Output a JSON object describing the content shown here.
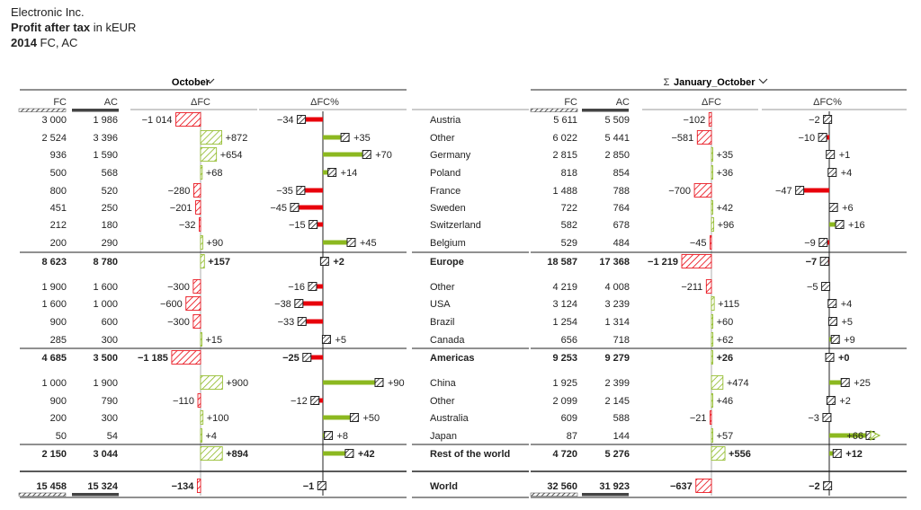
{
  "header": {
    "company": "Electronic Inc.",
    "measure_bold": "Profit after tax",
    "measure_rest": " in kEUR",
    "year": "2014",
    "scenario": " FC, AC"
  },
  "chart_data": {
    "type": "table",
    "period_left": "October",
    "period_right": "January_October",
    "sigma": "Σ",
    "col_fc": "FC",
    "col_ac": "AC",
    "col_dfc": "ΔFC",
    "col_dfcpct": "ΔFC%",
    "colors": {
      "positive": "#8cb820",
      "negative": "#e8000b",
      "total_bar": "#555555",
      "rule": "#222222"
    },
    "rows": [
      {
        "name": "Austria",
        "kind": "item",
        "m_fc": "3 000",
        "m_ac": "1 986",
        "m_dfc": -1014,
        "m_dfc_lbl": "−1 014",
        "m_pct": -34,
        "m_pct_lbl": "−34",
        "y_fc": "5 611",
        "y_ac": "5 509",
        "y_dfc": -102,
        "y_dfc_lbl": "−102",
        "y_pct": -2,
        "y_pct_lbl": "−2"
      },
      {
        "name": "Other",
        "kind": "item",
        "m_fc": "2 524",
        "m_ac": "3 396",
        "m_dfc": 872,
        "m_dfc_lbl": "+872",
        "m_pct": 35,
        "m_pct_lbl": "+35",
        "y_fc": "6 022",
        "y_ac": "5 441",
        "y_dfc": -581,
        "y_dfc_lbl": "−581",
        "y_pct": -10,
        "y_pct_lbl": "−10"
      },
      {
        "name": "Germany",
        "kind": "item",
        "m_fc": "936",
        "m_ac": "1 590",
        "m_dfc": 654,
        "m_dfc_lbl": "+654",
        "m_pct": 70,
        "m_pct_lbl": "+70",
        "y_fc": "2 815",
        "y_ac": "2 850",
        "y_dfc": 35,
        "y_dfc_lbl": "+35",
        "y_pct": 1,
        "y_pct_lbl": "+1"
      },
      {
        "name": "Poland",
        "kind": "item",
        "m_fc": "500",
        "m_ac": "568",
        "m_dfc": 68,
        "m_dfc_lbl": "+68",
        "m_pct": 14,
        "m_pct_lbl": "+14",
        "y_fc": "818",
        "y_ac": "854",
        "y_dfc": 36,
        "y_dfc_lbl": "+36",
        "y_pct": 4,
        "y_pct_lbl": "+4"
      },
      {
        "name": "France",
        "kind": "item",
        "m_fc": "800",
        "m_ac": "520",
        "m_dfc": -280,
        "m_dfc_lbl": "−280",
        "m_pct": -35,
        "m_pct_lbl": "−35",
        "y_fc": "1 488",
        "y_ac": "788",
        "y_dfc": -700,
        "y_dfc_lbl": "−700",
        "y_pct": -47,
        "y_pct_lbl": "−47"
      },
      {
        "name": "Sweden",
        "kind": "item",
        "m_fc": "451",
        "m_ac": "250",
        "m_dfc": -201,
        "m_dfc_lbl": "−201",
        "m_pct": -45,
        "m_pct_lbl": "−45",
        "y_fc": "722",
        "y_ac": "764",
        "y_dfc": 42,
        "y_dfc_lbl": "+42",
        "y_pct": 6,
        "y_pct_lbl": "+6"
      },
      {
        "name": "Switzerland",
        "kind": "item",
        "m_fc": "212",
        "m_ac": "180",
        "m_dfc": -32,
        "m_dfc_lbl": "−32",
        "m_pct": -15,
        "m_pct_lbl": "−15",
        "y_fc": "582",
        "y_ac": "678",
        "y_dfc": 96,
        "y_dfc_lbl": "+96",
        "y_pct": 16,
        "y_pct_lbl": "+16"
      },
      {
        "name": "Belgium",
        "kind": "item",
        "m_fc": "200",
        "m_ac": "290",
        "m_dfc": 90,
        "m_dfc_lbl": "+90",
        "m_pct": 45,
        "m_pct_lbl": "+45",
        "y_fc": "529",
        "y_ac": "484",
        "y_dfc": -45,
        "y_dfc_lbl": "−45",
        "y_pct": -9,
        "y_pct_lbl": "−9"
      },
      {
        "name": "Europe",
        "kind": "subtotal",
        "m_fc": "8 623",
        "m_ac": "8 780",
        "m_dfc": 157,
        "m_dfc_lbl": "+157",
        "m_pct": 2,
        "m_pct_lbl": "+2",
        "y_fc": "18 587",
        "y_ac": "17 368",
        "y_dfc": -1219,
        "y_dfc_lbl": "−1 219",
        "y_pct": -7,
        "y_pct_lbl": "−7"
      },
      {
        "name": "Other",
        "kind": "item",
        "m_fc": "1 900",
        "m_ac": "1 600",
        "m_dfc": -300,
        "m_dfc_lbl": "−300",
        "m_pct": -16,
        "m_pct_lbl": "−16",
        "y_fc": "4 219",
        "y_ac": "4 008",
        "y_dfc": -211,
        "y_dfc_lbl": "−211",
        "y_pct": -5,
        "y_pct_lbl": "−5"
      },
      {
        "name": "USA",
        "kind": "item",
        "m_fc": "1 600",
        "m_ac": "1 000",
        "m_dfc": -600,
        "m_dfc_lbl": "−600",
        "m_pct": -38,
        "m_pct_lbl": "−38",
        "y_fc": "3 124",
        "y_ac": "3 239",
        "y_dfc": 115,
        "y_dfc_lbl": "+115",
        "y_pct": 4,
        "y_pct_lbl": "+4"
      },
      {
        "name": "Brazil",
        "kind": "item",
        "m_fc": "900",
        "m_ac": "600",
        "m_dfc": -300,
        "m_dfc_lbl": "−300",
        "m_pct": -33,
        "m_pct_lbl": "−33",
        "y_fc": "1 254",
        "y_ac": "1 314",
        "y_dfc": 60,
        "y_dfc_lbl": "+60",
        "y_pct": 5,
        "y_pct_lbl": "+5"
      },
      {
        "name": "Canada",
        "kind": "item",
        "m_fc": "285",
        "m_ac": "300",
        "m_dfc": 15,
        "m_dfc_lbl": "+15",
        "m_pct": 5,
        "m_pct_lbl": "+5",
        "y_fc": "656",
        "y_ac": "718",
        "y_dfc": 62,
        "y_dfc_lbl": "+62",
        "y_pct": 9,
        "y_pct_lbl": "+9"
      },
      {
        "name": "Americas",
        "kind": "subtotal",
        "m_fc": "4 685",
        "m_ac": "3 500",
        "m_dfc": -1185,
        "m_dfc_lbl": "−1 185",
        "m_pct": -25,
        "m_pct_lbl": "−25",
        "y_fc": "9 253",
        "y_ac": "9 279",
        "y_dfc": 26,
        "y_dfc_lbl": "+26",
        "y_pct": 0,
        "y_pct_lbl": "+0"
      },
      {
        "name": "China",
        "kind": "item",
        "m_fc": "1 000",
        "m_ac": "1 900",
        "m_dfc": 900,
        "m_dfc_lbl": "+900",
        "m_pct": 90,
        "m_pct_lbl": "+90",
        "y_fc": "1 925",
        "y_ac": "2 399",
        "y_dfc": 474,
        "y_dfc_lbl": "+474",
        "y_pct": 25,
        "y_pct_lbl": "+25"
      },
      {
        "name": "Other",
        "kind": "item",
        "m_fc": "900",
        "m_ac": "790",
        "m_dfc": -110,
        "m_dfc_lbl": "−110",
        "m_pct": -12,
        "m_pct_lbl": "−12",
        "y_fc": "2 099",
        "y_ac": "2 145",
        "y_dfc": 46,
        "y_dfc_lbl": "+46",
        "y_pct": 2,
        "y_pct_lbl": "+2"
      },
      {
        "name": "Australia",
        "kind": "item",
        "m_fc": "200",
        "m_ac": "300",
        "m_dfc": 100,
        "m_dfc_lbl": "+100",
        "m_pct": 50,
        "m_pct_lbl": "+50",
        "y_fc": "609",
        "y_ac": "588",
        "y_dfc": -21,
        "y_dfc_lbl": "−21",
        "y_pct": -3,
        "y_pct_lbl": "−3"
      },
      {
        "name": "Japan",
        "kind": "item",
        "m_fc": "50",
        "m_ac": "54",
        "m_dfc": 4,
        "m_dfc_lbl": "+4",
        "m_pct": 8,
        "m_pct_lbl": "+8",
        "y_fc": "87",
        "y_ac": "144",
        "y_dfc": 57,
        "y_dfc_lbl": "+57",
        "y_pct": 66,
        "y_pct_lbl": "+66"
      },
      {
        "name": "Rest of the world",
        "kind": "subtotal",
        "m_fc": "2 150",
        "m_ac": "3 044",
        "m_dfc": 894,
        "m_dfc_lbl": "+894",
        "m_pct": 42,
        "m_pct_lbl": "+42",
        "y_fc": "4 720",
        "y_ac": "5 276",
        "y_dfc": 556,
        "y_dfc_lbl": "+556",
        "y_pct": 12,
        "y_pct_lbl": "+12"
      },
      {
        "name": "World",
        "kind": "total",
        "m_fc": "15 458",
        "m_ac": "15 324",
        "m_dfc": -134,
        "m_dfc_lbl": "−134",
        "m_pct": -1,
        "m_pct_lbl": "−1",
        "y_fc": "32 560",
        "y_ac": "31 923",
        "y_dfc": -637,
        "y_dfc_lbl": "−637",
        "y_pct": -2,
        "y_pct_lbl": "−2"
      }
    ]
  }
}
